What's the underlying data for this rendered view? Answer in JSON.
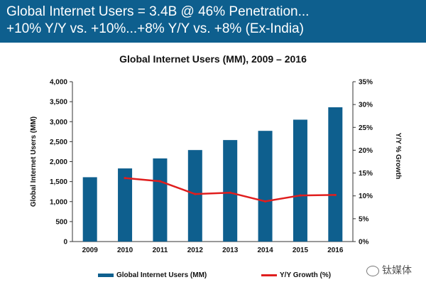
{
  "header": {
    "line1": "Global Internet Users = 3.4B @ 46% Penetration...",
    "line2": "+10% Y/Y vs. +10%...+8% Y/Y vs. +8% (Ex-India)",
    "background_color": "#0e5f8e"
  },
  "chart_data": {
    "type": "bar",
    "title": "Global Internet Users (MM), 2009 – 2016",
    "categories": [
      "2009",
      "2010",
      "2011",
      "2012",
      "2013",
      "2014",
      "2015",
      "2016"
    ],
    "series": [
      {
        "name": "Global Internet Users (MM)",
        "type": "bar",
        "axis": "left",
        "color": "#0e5f8e",
        "values": [
          1610,
          1830,
          2080,
          2290,
          2540,
          2770,
          3050,
          3360
        ]
      },
      {
        "name": "Y/Y Growth (%)",
        "type": "line",
        "axis": "right",
        "color": "#e01e1e",
        "values": [
          null,
          13.9,
          13.2,
          10.4,
          10.7,
          8.8,
          10.1,
          10.2
        ]
      }
    ],
    "ylabel": "Global Internet Users (MM)",
    "y2label": "Y/Y % Growth",
    "ylim": [
      0,
      4000
    ],
    "y2lim": [
      0,
      35
    ],
    "yticks": [
      "0",
      "500",
      "1,000",
      "1,500",
      "2,000",
      "2,500",
      "3,000",
      "3,500",
      "4,000"
    ],
    "y2ticks": [
      "0%",
      "5%",
      "10%",
      "15%",
      "20%",
      "25%",
      "30%",
      "35%"
    ],
    "grid": false,
    "legend_position": "bottom"
  },
  "legend": {
    "bar_label": "Global Internet Users (MM)",
    "line_label": "Y/Y Growth (%)"
  },
  "watermark": {
    "text": "钛媒体",
    "icon": "wechat-icon"
  }
}
